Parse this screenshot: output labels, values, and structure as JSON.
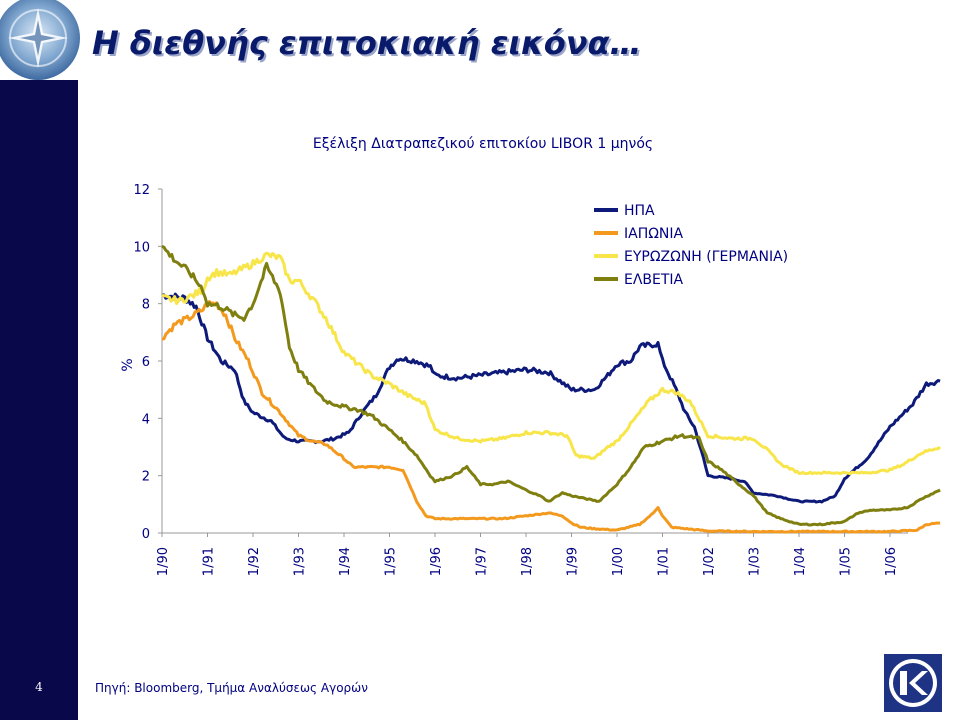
{
  "slide": {
    "title": "Η διεθνής επιτοκιακή εικόνα…",
    "page_number": "4",
    "source": "Πηγή: Bloomberg, Τμήμα Αναλύσεως Αγορών"
  },
  "colors": {
    "sidebar": "#08084a",
    "title": "#0a1a6b",
    "usa": "#0d1a7a",
    "japan": "#f39a1e",
    "eurozone": "#f7e54a",
    "switzerland": "#7f7f10"
  },
  "chart_data": {
    "type": "line",
    "title": "Εξέλιξη Διατραπεζικού επιτοκίου LIBOR 1 μηνός",
    "xlabel": "",
    "ylabel": "%",
    "ylim": [
      0,
      12
    ],
    "yticks": [
      "0",
      "2",
      "4",
      "6",
      "8",
      "10",
      "12"
    ],
    "categories": [
      "1/90",
      "1/91",
      "1/92",
      "1/93",
      "1/94",
      "1/95",
      "1/96",
      "1/97",
      "1/98",
      "1/99",
      "1/00",
      "1/01",
      "1/02",
      "1/03",
      "1/04",
      "1/05",
      "1/06"
    ],
    "grid": false,
    "legend_position": "top-right",
    "series": [
      {
        "name": "ΗΠΑ",
        "color": "#0d1a7a",
        "points": [
          [
            0,
            8.3
          ],
          [
            0.5,
            8.2
          ],
          [
            0.75,
            7.9
          ],
          [
            1,
            6.8
          ],
          [
            1.3,
            6.0
          ],
          [
            1.6,
            5.7
          ],
          [
            1.8,
            4.6
          ],
          [
            2,
            4.2
          ],
          [
            2.4,
            3.9
          ],
          [
            2.7,
            3.3
          ],
          [
            3,
            3.2
          ],
          [
            3.5,
            3.2
          ],
          [
            3.8,
            3.3
          ],
          [
            4.1,
            3.5
          ],
          [
            4.4,
            4.2
          ],
          [
            4.7,
            4.8
          ],
          [
            5,
            5.8
          ],
          [
            5.2,
            6.1
          ],
          [
            5.6,
            6.0
          ],
          [
            5.9,
            5.8
          ],
          [
            6,
            5.5
          ],
          [
            6.5,
            5.4
          ],
          [
            7,
            5.5
          ],
          [
            7.5,
            5.6
          ],
          [
            8,
            5.7
          ],
          [
            8.5,
            5.6
          ],
          [
            8.75,
            5.3
          ],
          [
            9,
            5.0
          ],
          [
            9.5,
            5.0
          ],
          [
            9.8,
            5.5
          ],
          [
            10,
            5.9
          ],
          [
            10.3,
            6.0
          ],
          [
            10.5,
            6.5
          ],
          [
            10.9,
            6.6
          ],
          [
            11,
            6.0
          ],
          [
            11.3,
            5.0
          ],
          [
            11.5,
            4.2
          ],
          [
            11.7,
            3.7
          ],
          [
            11.9,
            2.6
          ],
          [
            12,
            2.0
          ],
          [
            12.5,
            1.9
          ],
          [
            12.8,
            1.8
          ],
          [
            13,
            1.4
          ],
          [
            13.5,
            1.3
          ],
          [
            14,
            1.1
          ],
          [
            14.5,
            1.1
          ],
          [
            14.8,
            1.3
          ],
          [
            15,
            1.9
          ],
          [
            15.5,
            2.6
          ],
          [
            16,
            3.7
          ],
          [
            16.5,
            4.5
          ],
          [
            16.8,
            5.2
          ],
          [
            17.1,
            5.3
          ]
        ]
      },
      {
        "name": "ΙΑΠΩΝΙΑ",
        "color": "#f39a1e",
        "points": [
          [
            0,
            6.8
          ],
          [
            0.3,
            7.3
          ],
          [
            0.6,
            7.5
          ],
          [
            0.9,
            7.8
          ],
          [
            1,
            8.0
          ],
          [
            1.2,
            8.0
          ],
          [
            1.4,
            7.6
          ],
          [
            1.6,
            6.8
          ],
          [
            1.9,
            6.0
          ],
          [
            2.2,
            4.9
          ],
          [
            2.6,
            4.2
          ],
          [
            3,
            3.4
          ],
          [
            3.3,
            3.2
          ],
          [
            3.6,
            3.1
          ],
          [
            4,
            2.6
          ],
          [
            4.2,
            2.3
          ],
          [
            4.6,
            2.3
          ],
          [
            5,
            2.3
          ],
          [
            5.3,
            2.2
          ],
          [
            5.6,
            1.1
          ],
          [
            5.8,
            0.6
          ],
          [
            6,
            0.5
          ],
          [
            6.5,
            0.5
          ],
          [
            7,
            0.5
          ],
          [
            7.5,
            0.5
          ],
          [
            8,
            0.6
          ],
          [
            8.5,
            0.7
          ],
          [
            8.8,
            0.6
          ],
          [
            9,
            0.35
          ],
          [
            9.2,
            0.2
          ],
          [
            9.5,
            0.15
          ],
          [
            10,
            0.1
          ],
          [
            10.5,
            0.3
          ],
          [
            10.8,
            0.7
          ],
          [
            10.9,
            0.9
          ],
          [
            11,
            0.6
          ],
          [
            11.2,
            0.2
          ],
          [
            12,
            0.07
          ],
          [
            13,
            0.05
          ],
          [
            14,
            0.05
          ],
          [
            15,
            0.05
          ],
          [
            16,
            0.05
          ],
          [
            16.6,
            0.1
          ],
          [
            16.8,
            0.3
          ],
          [
            17.1,
            0.35
          ]
        ]
      },
      {
        "name": "ΕΥΡΩΖΩΝΗ (ΓΕΡΜΑΝΙΑ)",
        "color": "#f7e54a",
        "points": [
          [
            0,
            8.2
          ],
          [
            0.4,
            8.1
          ],
          [
            0.7,
            8.3
          ],
          [
            0.9,
            8.5
          ],
          [
            1,
            8.9
          ],
          [
            1.2,
            9.1
          ],
          [
            1.5,
            9.0
          ],
          [
            2,
            9.4
          ],
          [
            2.3,
            9.7
          ],
          [
            2.6,
            9.6
          ],
          [
            2.8,
            8.8
          ],
          [
            3,
            8.8
          ],
          [
            3.3,
            8.2
          ],
          [
            3.6,
            7.5
          ],
          [
            4,
            6.3
          ],
          [
            4.3,
            5.9
          ],
          [
            4.6,
            5.5
          ],
          [
            5,
            5.2
          ],
          [
            5.4,
            4.8
          ],
          [
            5.8,
            4.5
          ],
          [
            6,
            3.6
          ],
          [
            6.5,
            3.3
          ],
          [
            7,
            3.2
          ],
          [
            7.5,
            3.3
          ],
          [
            8,
            3.5
          ],
          [
            8.5,
            3.5
          ],
          [
            8.9,
            3.4
          ],
          [
            9.1,
            2.7
          ],
          [
            9.5,
            2.6
          ],
          [
            9.8,
            3.0
          ],
          [
            10,
            3.2
          ],
          [
            10.3,
            3.8
          ],
          [
            10.7,
            4.6
          ],
          [
            11,
            5.0
          ],
          [
            11.3,
            4.9
          ],
          [
            11.6,
            4.6
          ],
          [
            11.9,
            3.7
          ],
          [
            12,
            3.4
          ],
          [
            12.5,
            3.3
          ],
          [
            13,
            3.3
          ],
          [
            13.3,
            2.9
          ],
          [
            13.6,
            2.4
          ],
          [
            14,
            2.1
          ],
          [
            14.5,
            2.1
          ],
          [
            15,
            2.1
          ],
          [
            15.5,
            2.1
          ],
          [
            16,
            2.2
          ],
          [
            16.3,
            2.4
          ],
          [
            16.7,
            2.8
          ],
          [
            17.1,
            3.0
          ]
        ]
      },
      {
        "name": "ΕΛΒΕΤΙΑ",
        "color": "#7f7f10",
        "points": [
          [
            0,
            10.0
          ],
          [
            0.3,
            9.5
          ],
          [
            0.6,
            9.1
          ],
          [
            0.9,
            8.5
          ],
          [
            1,
            8.0
          ],
          [
            1.3,
            7.9
          ],
          [
            1.6,
            7.6
          ],
          [
            1.8,
            7.5
          ],
          [
            2,
            8.0
          ],
          [
            2.3,
            9.3
          ],
          [
            2.6,
            8.4
          ],
          [
            2.8,
            6.5
          ],
          [
            3,
            5.7
          ],
          [
            3.3,
            5.1
          ],
          [
            3.6,
            4.6
          ],
          [
            4,
            4.4
          ],
          [
            4.3,
            4.3
          ],
          [
            4.6,
            4.1
          ],
          [
            5,
            3.6
          ],
          [
            5.3,
            3.2
          ],
          [
            5.6,
            2.7
          ],
          [
            5.9,
            2.0
          ],
          [
            6,
            1.8
          ],
          [
            6.4,
            2.0
          ],
          [
            6.7,
            2.3
          ],
          [
            7,
            1.7
          ],
          [
            7.3,
            1.7
          ],
          [
            7.6,
            1.8
          ],
          [
            8,
            1.5
          ],
          [
            8.3,
            1.3
          ],
          [
            8.5,
            1.1
          ],
          [
            8.8,
            1.4
          ],
          [
            9,
            1.3
          ],
          [
            9.3,
            1.2
          ],
          [
            9.6,
            1.1
          ],
          [
            10,
            1.7
          ],
          [
            10.3,
            2.3
          ],
          [
            10.6,
            3.0
          ],
          [
            11,
            3.2
          ],
          [
            11.4,
            3.4
          ],
          [
            11.8,
            3.3
          ],
          [
            12,
            2.5
          ],
          [
            12.3,
            2.2
          ],
          [
            12.6,
            1.8
          ],
          [
            13,
            1.3
          ],
          [
            13.3,
            0.7
          ],
          [
            13.6,
            0.5
          ],
          [
            14,
            0.3
          ],
          [
            14.5,
            0.3
          ],
          [
            15,
            0.4
          ],
          [
            15.3,
            0.7
          ],
          [
            15.6,
            0.8
          ],
          [
            16,
            0.8
          ],
          [
            16.4,
            0.9
          ],
          [
            16.7,
            1.2
          ],
          [
            17.1,
            1.5
          ]
        ]
      }
    ]
  }
}
